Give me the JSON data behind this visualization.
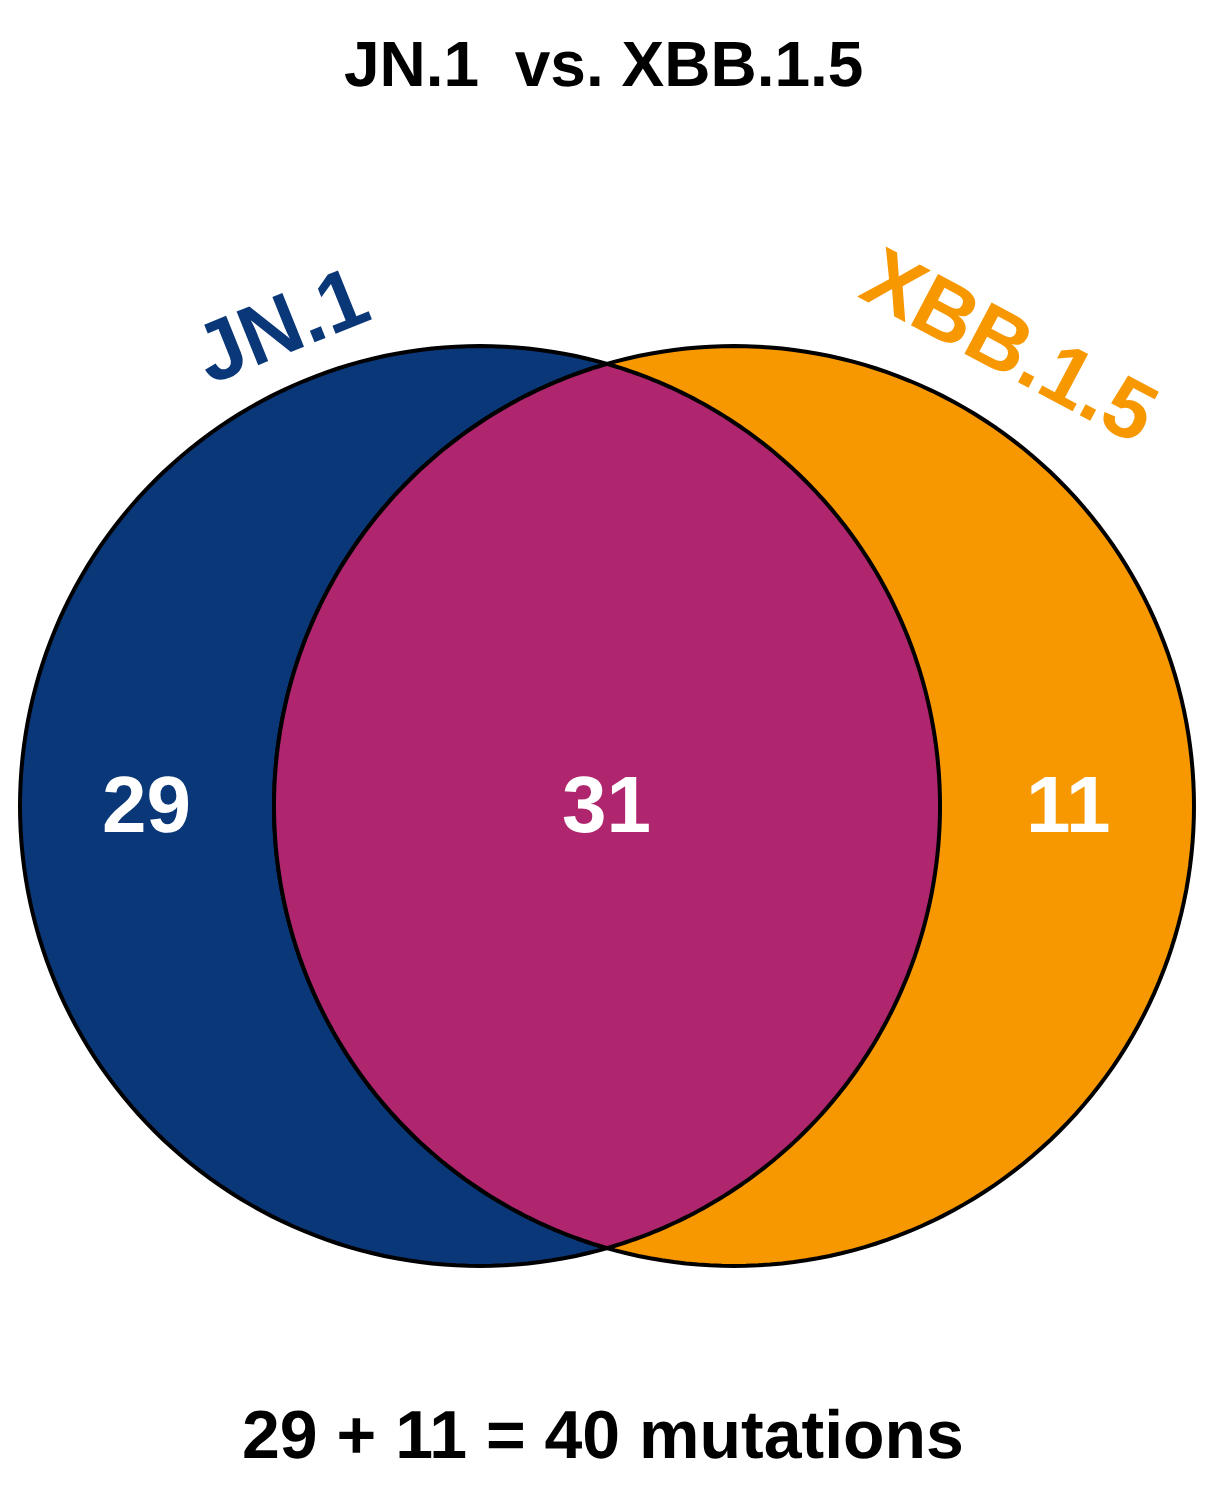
{
  "chart_data": {
    "type": "other",
    "title": "JN.1  vs. XBB.1.5",
    "categories": [
      null,
      null,
      null
    ],
    "values": [
      29,
      31,
      11
    ],
    "colors": [
      "#0a3778",
      "#b0266e",
      "#f79800"
    ],
    "data_labels": true,
    "annotations": [
      "JN.1",
      "XBB.1.5",
      "29 + 11 = 40 mutations"
    ]
  }
}
